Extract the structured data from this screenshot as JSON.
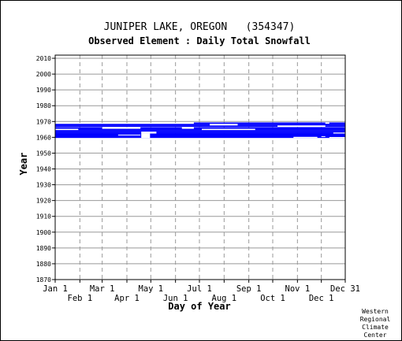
{
  "chart_data": {
    "type": "heatmap",
    "title": "JUNIPER LAKE, OREGON   (354347)",
    "subtitle": "Observed Element : Daily Total Snowfall",
    "xlabel": "Day of Year",
    "ylabel": "Year",
    "xlim": [
      1,
      365
    ],
    "ylim": [
      1870,
      2012
    ],
    "y_ticks": [
      1870,
      1880,
      1890,
      1900,
      1910,
      1920,
      1930,
      1940,
      1950,
      1960,
      1970,
      1980,
      1990,
      2000,
      2010
    ],
    "x_ticks_upper": [
      {
        "label": "Jan 1",
        "day": 1
      },
      {
        "label": "Mar 1",
        "day": 60
      },
      {
        "label": "May 1",
        "day": 121
      },
      {
        "label": "Jul 1",
        "day": 182
      },
      {
        "label": "Sep 1",
        "day": 244
      },
      {
        "label": "Nov 1",
        "day": 305
      },
      {
        "label": "Dec 31",
        "day": 365
      }
    ],
    "x_ticks_lower": [
      {
        "label": "Feb 1",
        "day": 32
      },
      {
        "label": "Apr 1",
        "day": 91
      },
      {
        "label": "Jun 1",
        "day": 152
      },
      {
        "label": "Aug 1",
        "day": 213
      },
      {
        "label": "Oct 1",
        "day": 274
      },
      {
        "label": "Dec 1",
        "day": 335
      }
    ],
    "grid": true,
    "color": "#0000ff",
    "observed_periods": [
      {
        "start_year": 1959.6,
        "end_year": 1962.4,
        "start_day": 1,
        "end_day": 365
      },
      {
        "start_year": 1962.4,
        "end_year": 1963.6,
        "start_day": 1,
        "end_day": 365
      },
      {
        "start_year": 1963.6,
        "end_year": 1964.6,
        "start_day": 1,
        "end_day": 365
      },
      {
        "start_year": 1964.6,
        "end_year": 1965.4,
        "start_day": 1,
        "end_day": 365
      },
      {
        "start_year": 1965.4,
        "end_year": 1966.4,
        "start_day": 1,
        "end_day": 365
      },
      {
        "start_year": 1966.6,
        "end_year": 1967.5,
        "start_day": 1,
        "end_day": 365
      },
      {
        "start_year": 1967.5,
        "end_year": 1968.5,
        "start_day": 1,
        "end_day": 365
      },
      {
        "start_year": 1968.5,
        "end_year": 1969.4,
        "start_day": 175,
        "end_day": 365
      }
    ],
    "gaps": [
      {
        "start_year": 1961.3,
        "end_year": 1961.7,
        "start_day": 80,
        "end_day": 108
      },
      {
        "start_year": 1959.6,
        "end_year": 1962.4,
        "start_day": 109,
        "end_day": 120
      },
      {
        "start_year": 1962.4,
        "end_year": 1963.6,
        "start_day": 109,
        "end_day": 128
      },
      {
        "start_year": 1964.6,
        "end_year": 1965.4,
        "start_day": 1,
        "end_day": 30
      },
      {
        "start_year": 1964.6,
        "end_year": 1965.4,
        "start_day": 185,
        "end_day": 252
      },
      {
        "start_year": 1965.4,
        "end_year": 1966.4,
        "start_day": 60,
        "end_day": 108
      },
      {
        "start_year": 1965.4,
        "end_year": 1966.4,
        "start_day": 160,
        "end_day": 175
      },
      {
        "start_year": 1966.6,
        "end_year": 1967.5,
        "start_day": 280,
        "end_day": 340
      },
      {
        "start_year": 1967.5,
        "end_year": 1968.5,
        "start_day": 195,
        "end_day": 230
      },
      {
        "start_year": 1959.6,
        "end_year": 1960.3,
        "start_day": 300,
        "end_day": 330
      },
      {
        "start_year": 1960.3,
        "end_year": 1960.7,
        "start_day": 335,
        "end_day": 340
      },
      {
        "start_year": 1959.6,
        "end_year": 1960.2,
        "start_day": 345,
        "end_day": 365
      },
      {
        "start_year": 1962.4,
        "end_year": 1963.0,
        "start_day": 350,
        "end_day": 365
      },
      {
        "start_year": 1968.6,
        "end_year": 1969.3,
        "start_day": 340,
        "end_day": 345
      }
    ],
    "credit": [
      "Western",
      "Regional",
      "Climate",
      "Center"
    ]
  }
}
